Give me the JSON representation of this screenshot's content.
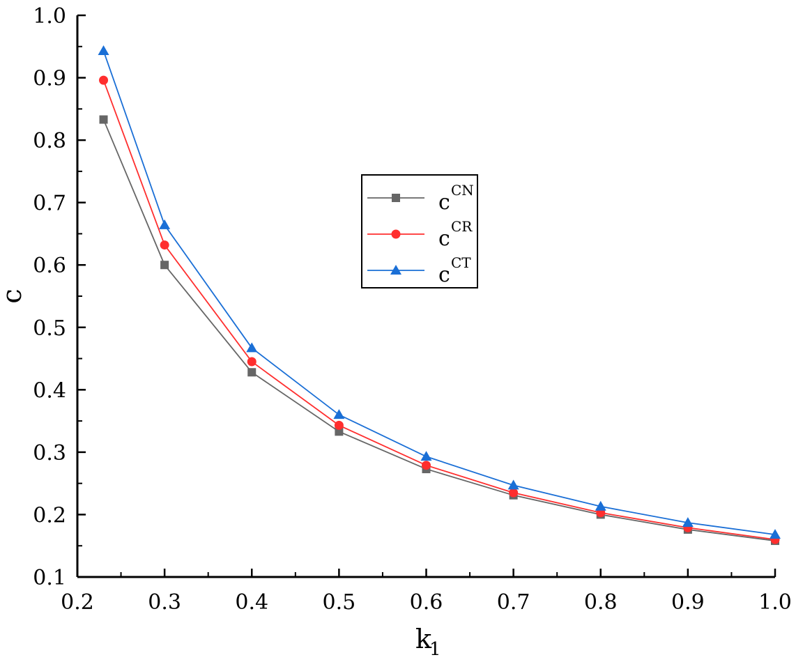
{
  "chart_data": {
    "type": "line",
    "xlabel": "k",
    "xlabel_sub": "1",
    "ylabel": "c",
    "xlim": [
      0.2,
      1.0
    ],
    "ylim": [
      0.1,
      1.0
    ],
    "xticks": [
      "0.2",
      "0.3",
      "0.4",
      "0.5",
      "0.6",
      "0.7",
      "0.8",
      "0.9",
      "1.0"
    ],
    "yticks": [
      "0.1",
      "0.2",
      "0.3",
      "0.4",
      "0.5",
      "0.6",
      "0.7",
      "0.8",
      "0.9",
      "1.0"
    ],
    "grid": false,
    "legend_position": "center",
    "x": [
      0.23,
      0.3,
      0.4,
      0.5,
      0.6,
      0.7,
      0.8,
      0.9,
      1.0
    ],
    "series": [
      {
        "name": "c",
        "name_sup": "CN",
        "color": "#666666",
        "marker": "square",
        "values": [
          0.833,
          0.6,
          0.428,
          0.333,
          0.273,
          0.231,
          0.2,
          0.176,
          0.158
        ]
      },
      {
        "name": "c",
        "name_sup": "CR",
        "color": "#ff2e2e",
        "marker": "circle",
        "values": [
          0.896,
          0.632,
          0.445,
          0.343,
          0.279,
          0.235,
          0.203,
          0.179,
          0.16
        ]
      },
      {
        "name": "c",
        "name_sup": "CT",
        "color": "#1a6fd6",
        "marker": "triangle",
        "values": [
          0.943,
          0.664,
          0.467,
          0.36,
          0.293,
          0.247,
          0.213,
          0.187,
          0.168
        ]
      }
    ]
  }
}
